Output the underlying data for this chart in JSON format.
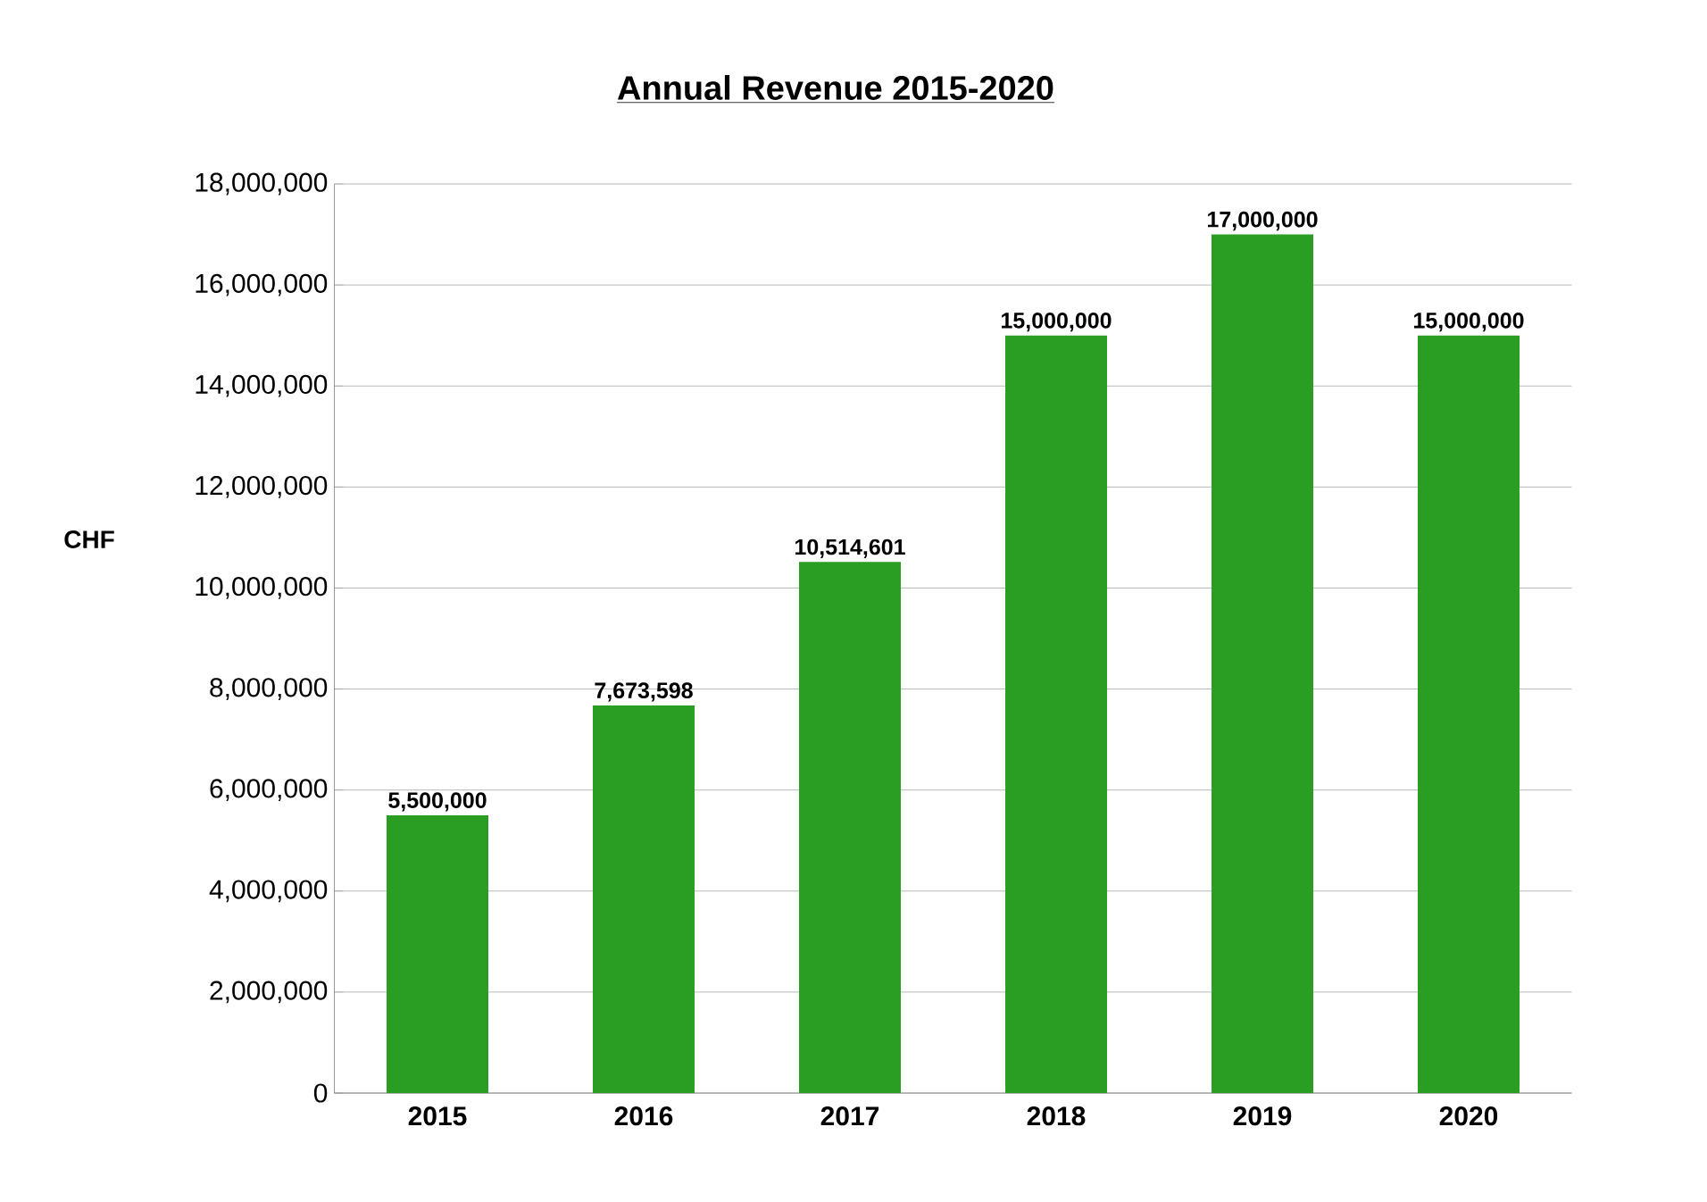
{
  "chart_data": {
    "type": "bar",
    "title": "Annual Revenue 2015-2020",
    "ylabel": "CHF",
    "categories": [
      "2015",
      "2016",
      "2017",
      "2018",
      "2019",
      "2020"
    ],
    "values": [
      5500000,
      7673598,
      10514601,
      15000000,
      17000000,
      15000000
    ],
    "value_labels": [
      "5,500,000",
      "7,673,598",
      "10,514,601",
      "15,000,000",
      "17,000,000",
      "15,000,000"
    ],
    "color": "#2a9e22",
    "ylim": [
      0,
      18000000
    ],
    "yticks": [
      0,
      {
        "value": 2000000,
        "label": "2,000,000"
      },
      {
        "value": 4000000,
        "label": "4,000,000"
      },
      {
        "value": 6000000,
        "label": "6,000,000"
      },
      {
        "value": 8000000,
        "label": "8,000,000"
      },
      {
        "value": 10000000,
        "label": "10,000,000"
      },
      {
        "value": 12000000,
        "label": "12,000,000"
      },
      {
        "value": 14000000,
        "label": "14,000,000"
      },
      {
        "value": 16000000,
        "label": "16,000,000"
      },
      {
        "value": 18000000,
        "label": "18,000,000"
      }
    ],
    "grid": "y"
  }
}
